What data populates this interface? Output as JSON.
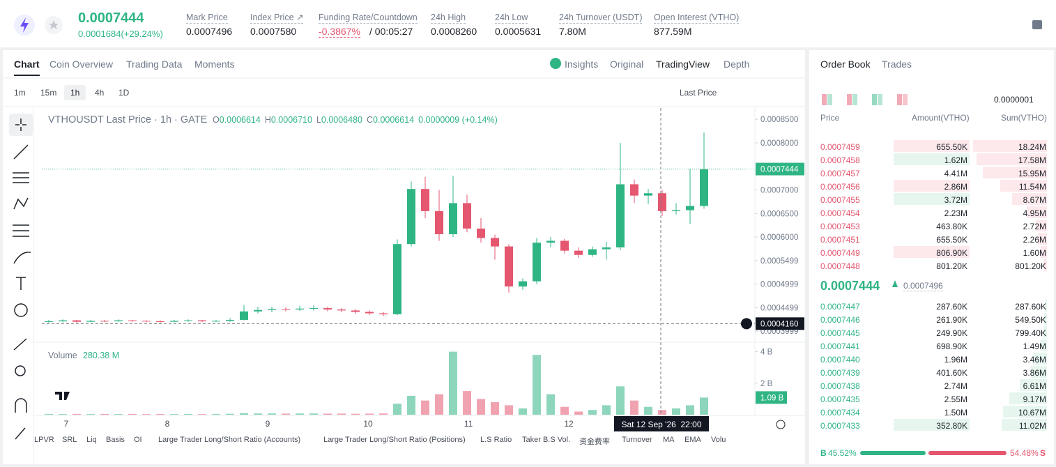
{
  "header": {
    "last_price": "0.0007444",
    "change": "0.0001684(+29.24%)",
    "stats": [
      {
        "label": "Mark Price",
        "value": "0.0007496"
      },
      {
        "label": "Index Price ↗",
        "value": "0.0007580"
      },
      {
        "label": "Funding Rate/Countdown",
        "value": "-0.3867%",
        "value2": "/ 00:05:27"
      },
      {
        "label": "24h High",
        "value": "0.0008260"
      },
      {
        "label": "24h Low",
        "value": "0.0005631"
      },
      {
        "label": "24h Turnover (USDT)",
        "value": "7.80M"
      },
      {
        "label": "Open Interest (VTHO)",
        "value": "877.59M"
      }
    ]
  },
  "chart_tabs": [
    "Chart",
    "Coin Overview",
    "Trading Data",
    "Moments"
  ],
  "view_tabs": [
    "Insights",
    "Original",
    "TradingView",
    "Depth"
  ],
  "intervals": [
    "1m",
    "15m",
    "1h",
    "4h",
    "1D"
  ],
  "price_type": "Last Price",
  "indicators": [
    "LPVR",
    "SRL",
    "Liq",
    "Basis",
    "OI",
    "Large Trader Long/Short Ratio (Accounts)",
    "Large Trader Long/Short Ratio (Positions)",
    "L.S Ratio",
    "Taker B.S Vol.",
    "资金费率",
    "Turnover",
    "MA",
    "EMA",
    "Volu"
  ],
  "chart_data": {
    "type": "candlestick",
    "title": "VTHOUSDT Last Price · 1h · GATE",
    "legend": [
      {
        "key": "O",
        "value": "0.0006614"
      },
      {
        "key": "H",
        "value": "0.0006710"
      },
      {
        "key": "L",
        "value": "0.0006480"
      },
      {
        "key": "C",
        "value": "0.0006614"
      },
      {
        "key": "",
        "value": "0.0000009 (+0.14%)"
      }
    ],
    "up_color": "#2fb584",
    "down_color": "#e5566f",
    "open": [
      0.00042,
      0.000421,
      0.000423,
      0.00042,
      0.000422,
      0.000421,
      0.000423,
      0.000422,
      0.000421,
      0.00042,
      0.000422,
      0.000423,
      0.000421,
      0.000422,
      0.000424,
      0.000442,
      0.000445,
      0.000447,
      0.000446,
      0.000448,
      0.000449,
      0.000446,
      0.000444,
      0.000441,
      0.000438,
      0.000436,
      0.000585,
      0.000702,
      0.000655,
      0.000606,
      0.000672,
      0.000618,
      0.000598,
      0.00058,
      0.000495,
      0.000506,
      0.000588,
      0.000592,
      0.000571,
      0.000562,
      0.000574,
      0.000578,
      0.000712,
      0.000688,
      0.000693,
      0.000655,
      0.000657,
      0.000666
    ],
    "high": [
      0.000424,
      0.000425,
      0.000424,
      0.000424,
      0.000424,
      0.000425,
      0.000424,
      0.000423,
      0.000423,
      0.000424,
      0.000425,
      0.000424,
      0.000424,
      0.000428,
      0.000456,
      0.000452,
      0.000452,
      0.000451,
      0.000454,
      0.000455,
      0.000452,
      0.000449,
      0.000447,
      0.000444,
      0.000441,
      0.000595,
      0.000718,
      0.000728,
      0.0007,
      0.00073,
      0.00069,
      0.00064,
      0.000605,
      0.000585,
      0.000512,
      0.000598,
      0.0006,
      0.000596,
      0.000578,
      0.00058,
      0.00059,
      0.0008,
      0.000722,
      0.000702,
      0.0007,
      0.000672,
      0.000745,
      0.000822
    ],
    "low": [
      0.000418,
      0.000419,
      0.000418,
      0.000419,
      0.000419,
      0.00042,
      0.00042,
      0.000419,
      0.000418,
      0.000419,
      0.00042,
      0.000419,
      0.00042,
      0.00042,
      0.000423,
      0.000438,
      0.00044,
      0.000442,
      0.000443,
      0.000444,
      0.000442,
      0.00044,
      0.000437,
      0.000434,
      0.000432,
      0.000434,
      0.00058,
      0.00064,
      0.000592,
      0.0006,
      0.00061,
      0.000588,
      0.000552,
      0.000482,
      0.000488,
      0.0005,
      0.000578,
      0.000565,
      0.000556,
      0.000558,
      0.000552,
      0.000572,
      0.000672,
      0.00067,
      0.000645,
      0.000648,
      0.000628,
      0.00066
    ],
    "close": [
      0.000421,
      0.000423,
      0.00042,
      0.000422,
      0.000421,
      0.000423,
      0.000422,
      0.000421,
      0.00042,
      0.000422,
      0.000423,
      0.000421,
      0.000422,
      0.000424,
      0.000442,
      0.000445,
      0.000447,
      0.000446,
      0.000448,
      0.000449,
      0.000446,
      0.000444,
      0.000441,
      0.000438,
      0.000436,
      0.000585,
      0.000702,
      0.000655,
      0.000606,
      0.000672,
      0.000618,
      0.000598,
      0.00058,
      0.000495,
      0.000506,
      0.000588,
      0.000592,
      0.000571,
      0.000562,
      0.000574,
      0.000578,
      0.000712,
      0.000688,
      0.000693,
      0.000655,
      0.000657,
      0.000666,
      0.000744
    ],
    "ylim": [
      0.000378,
      0.000874
    ],
    "yticks": [
      {
        "value": 0.00085,
        "label": "0.0008500"
      },
      {
        "value": 0.0008,
        "label": "0.0008000"
      },
      {
        "value": 0.0007,
        "label": "0.0007000"
      },
      {
        "value": 0.00065,
        "label": "0.0006500"
      },
      {
        "value": 0.0006,
        "label": "0.0006000"
      },
      {
        "value": 0.0005499,
        "label": "0.0005499"
      },
      {
        "value": 0.0004999,
        "label": "0.0004999"
      },
      {
        "value": 0.0004499,
        "label": "0.0004499"
      },
      {
        "value": 0.0003999,
        "label": "0.0003999"
      }
    ],
    "last_price": {
      "value": 0.0007444,
      "label": "0.0007444"
    },
    "crosshair_price": {
      "value": 0.000416,
      "label": "0.0004160"
    },
    "crosshair_time": "Sat 12 Sep '26  22:00",
    "xtick_labels": [
      "7",
      "8",
      "9",
      "10",
      "11",
      "12"
    ],
    "volume_title": "Volume",
    "volume_total": "280.38 M",
    "volume": [
      0.05,
      0.04,
      0.05,
      0.04,
      0.05,
      0.04,
      0.05,
      0.04,
      0.05,
      0.04,
      0.05,
      0.04,
      0.05,
      0.06,
      0.1,
      0.08,
      0.08,
      0.07,
      0.08,
      0.08,
      0.07,
      0.07,
      0.06,
      0.07,
      0.08,
      0.7,
      1.2,
      0.9,
      1.3,
      4.0,
      1.5,
      1.0,
      0.8,
      0.6,
      0.4,
      3.8,
      1.3,
      0.5,
      0.2,
      0.3,
      0.6,
      1.8,
      0.9,
      0.5,
      0.3,
      0.4,
      0.6,
      1.09
    ],
    "volume_ylim": [
      0,
      4.6
    ],
    "volume_yticks": [
      {
        "value": 4,
        "label": "4 B"
      },
      {
        "value": 2,
        "label": "2 B"
      }
    ],
    "volume_last_label": "1.09 B"
  },
  "order_book": {
    "tabs": [
      "Order Book",
      "Trades"
    ],
    "precision": "0.0000001",
    "headers": [
      "Price",
      "Amount(VTHO)",
      "Sum(VTHO)"
    ],
    "asks": [
      [
        "0.0007459",
        "655.50K",
        "18.24M"
      ],
      [
        "0.0007458",
        "1.62M",
        "17.58M"
      ],
      [
        "0.0007457",
        "4.41M",
        "15.95M"
      ],
      [
        "0.0007456",
        "2.86M",
        "11.54M"
      ],
      [
        "0.0007455",
        "3.72M",
        "8.67M"
      ],
      [
        "0.0007454",
        "2.23M",
        "4.95M"
      ],
      [
        "0.0007453",
        "463.80K",
        "2.72M"
      ],
      [
        "0.0007451",
        "655.50K",
        "2.26M"
      ],
      [
        "0.0007449",
        "806.90K",
        "1.60M"
      ],
      [
        "0.0007448",
        "801.20K",
        "801.20K"
      ]
    ],
    "mid_price": "0.0007444",
    "mark_price": "0.0007496",
    "bids": [
      [
        "0.0007447",
        "287.60K",
        "287.60K"
      ],
      [
        "0.0007446",
        "261.90K",
        "549.50K"
      ],
      [
        "0.0007445",
        "249.90K",
        "799.40K"
      ],
      [
        "0.0007441",
        "698.90K",
        "1.49M"
      ],
      [
        "0.0007440",
        "1.96M",
        "3.46M"
      ],
      [
        "0.0007439",
        "401.60K",
        "3.86M"
      ],
      [
        "0.0007438",
        "2.74M",
        "6.61M"
      ],
      [
        "0.0007435",
        "2.55M",
        "9.17M"
      ],
      [
        "0.0007434",
        "1.50M",
        "10.67M"
      ],
      [
        "0.0007433",
        "352.80K",
        "11.02M"
      ]
    ],
    "buy_label": "B",
    "buy_ratio": {
      "value": 45.52,
      "label": "45.52%"
    },
    "sell_ratio": {
      "value": 54.48,
      "label": "54.48%"
    },
    "sell_label": "S"
  }
}
